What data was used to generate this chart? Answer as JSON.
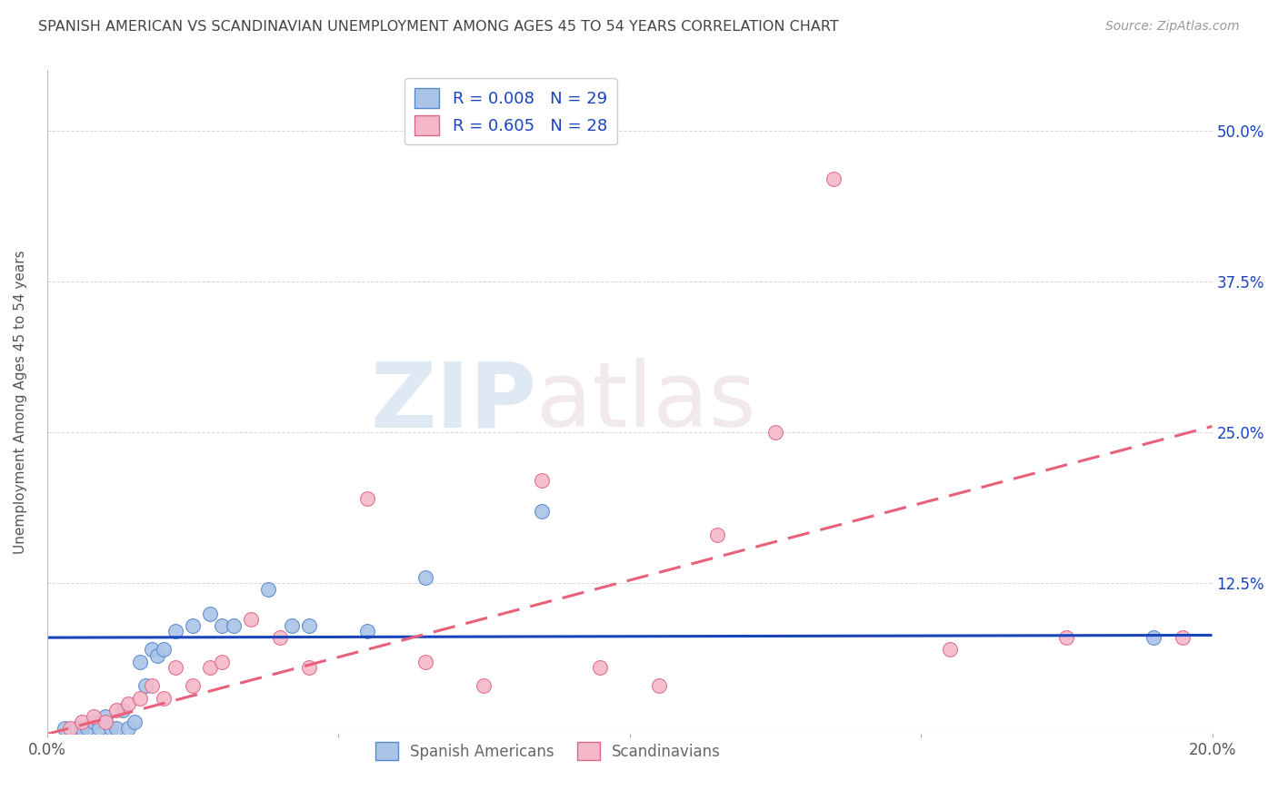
{
  "title": "SPANISH AMERICAN VS SCANDINAVIAN UNEMPLOYMENT AMONG AGES 45 TO 54 YEARS CORRELATION CHART",
  "source": "Source: ZipAtlas.com",
  "ylabel": "Unemployment Among Ages 45 to 54 years",
  "xlim": [
    0.0,
    0.2
  ],
  "ylim": [
    0.0,
    0.55
  ],
  "yticks": [
    0.0,
    0.125,
    0.25,
    0.375,
    0.5
  ],
  "xticks": [
    0.0,
    0.05,
    0.1,
    0.15,
    0.2
  ],
  "background_color": "#ffffff",
  "grid_color": "#cccccc",
  "blue_scatter_color": "#aac4e8",
  "pink_scatter_color": "#f5b8c8",
  "blue_line_color": "#1a44bb",
  "pink_line_color": "#e8607a",
  "blue_scatter_edgecolor": "#5588cc",
  "pink_scatter_edgecolor": "#dd6688",
  "R_blue": 0.008,
  "N_blue": 29,
  "R_pink": 0.605,
  "N_pink": 28,
  "legend_label_blue": "Spanish Americans",
  "legend_label_pink": "Scandinavians",
  "title_color": "#444444",
  "source_color": "#999999",
  "axis_label_color": "#555555",
  "tick_color_right": "#1a44bb",
  "scatter_size": 130,
  "blue_x": [
    0.003,
    0.005,
    0.006,
    0.007,
    0.008,
    0.009,
    0.01,
    0.011,
    0.012,
    0.013,
    0.014,
    0.015,
    0.016,
    0.017,
    0.018,
    0.019,
    0.02,
    0.022,
    0.025,
    0.028,
    0.03,
    0.032,
    0.038,
    0.042,
    0.045,
    0.055,
    0.065,
    0.085,
    0.19
  ],
  "blue_y": [
    0.005,
    0.005,
    0.005,
    0.005,
    0.01,
    0.005,
    0.015,
    0.005,
    0.005,
    0.02,
    0.005,
    0.01,
    0.06,
    0.04,
    0.07,
    0.065,
    0.07,
    0.085,
    0.09,
    0.1,
    0.09,
    0.09,
    0.12,
    0.09,
    0.09,
    0.085,
    0.13,
    0.185,
    0.08
  ],
  "pink_x": [
    0.004,
    0.006,
    0.008,
    0.01,
    0.012,
    0.014,
    0.016,
    0.018,
    0.02,
    0.022,
    0.025,
    0.028,
    0.03,
    0.035,
    0.04,
    0.045,
    0.055,
    0.065,
    0.075,
    0.085,
    0.095,
    0.105,
    0.115,
    0.125,
    0.135,
    0.155,
    0.175,
    0.195
  ],
  "pink_y": [
    0.005,
    0.01,
    0.015,
    0.01,
    0.02,
    0.025,
    0.03,
    0.04,
    0.03,
    0.055,
    0.04,
    0.055,
    0.06,
    0.095,
    0.08,
    0.055,
    0.195,
    0.06,
    0.04,
    0.21,
    0.055,
    0.04,
    0.165,
    0.25,
    0.46,
    0.07,
    0.08,
    0.08
  ],
  "blue_regline": [
    0.0,
    0.2,
    0.08,
    0.082
  ],
  "pink_regline": [
    0.0,
    0.2,
    0.0,
    0.255
  ]
}
